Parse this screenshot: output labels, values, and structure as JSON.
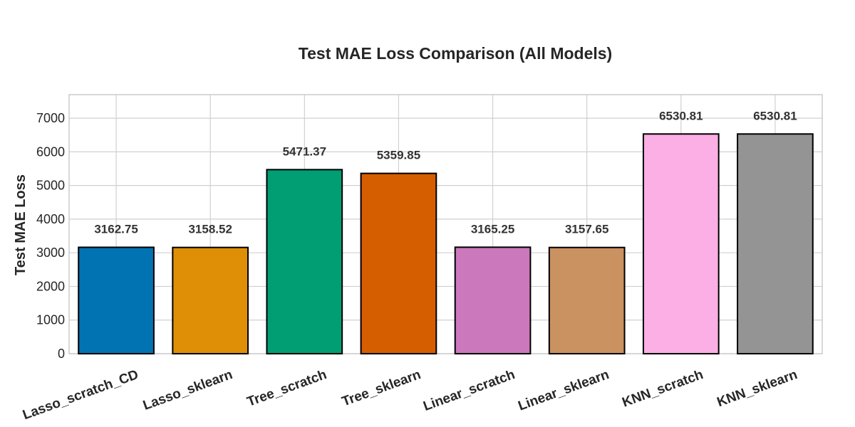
{
  "chart_data": {
    "type": "bar",
    "title": "Test MAE Loss Comparison (All Models)",
    "xlabel": "",
    "ylabel": "Test MAE Loss",
    "categories": [
      "Lasso_scratch_CD",
      "Lasso_sklearn",
      "Tree_scratch",
      "Tree_sklearn",
      "Linear_scratch",
      "Linear_sklearn",
      "KNN_scratch",
      "KNN_sklearn"
    ],
    "values": [
      3162.75,
      3158.52,
      5471.37,
      5359.85,
      3165.25,
      3157.65,
      6530.81,
      6530.81
    ],
    "data_labels": [
      "3162.75",
      "3158.52",
      "5471.37",
      "5359.85",
      "3165.25",
      "3157.65",
      "6530.81",
      "6530.81"
    ],
    "colors": [
      "#0173b2",
      "#de8f05",
      "#029e73",
      "#d55e00",
      "#cc78bc",
      "#ca9161",
      "#fbafe4",
      "#949494"
    ],
    "ylim": [
      0,
      7700
    ],
    "yticks": [
      0,
      1000,
      2000,
      3000,
      4000,
      5000,
      6000,
      7000
    ],
    "ytick_labels": [
      "0",
      "1000",
      "2000",
      "3000",
      "4000",
      "5000",
      "6000",
      "7000"
    ],
    "grid": true,
    "xtick_rotation_deg": -20
  }
}
